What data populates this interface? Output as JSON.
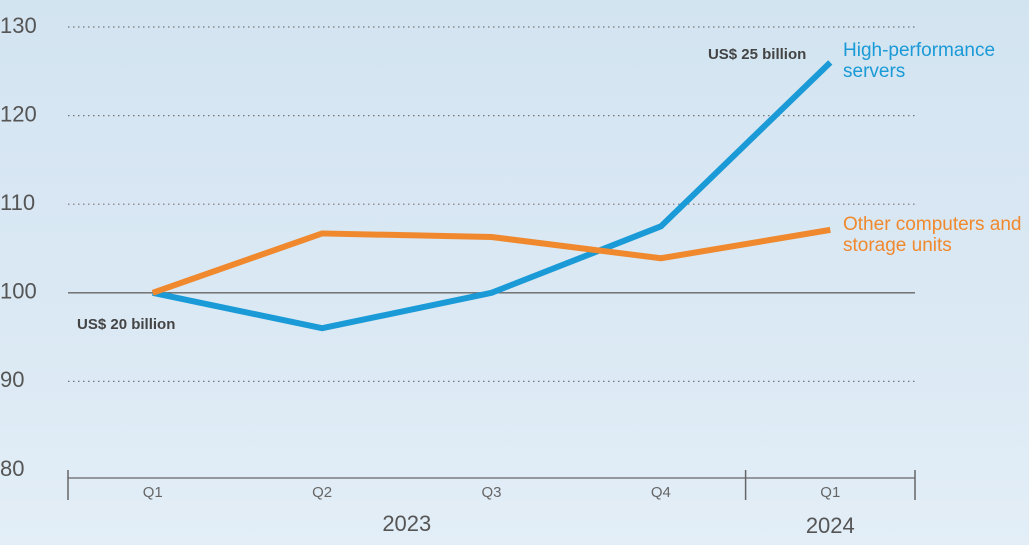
{
  "chart_data": {
    "type": "line",
    "categories": [
      "Q1",
      "Q2",
      "Q3",
      "Q4",
      "Q1"
    ],
    "x_groups": [
      {
        "label": "2023",
        "span": 4
      },
      {
        "label": "2024",
        "span": 1
      }
    ],
    "series": [
      {
        "name": "High-performance servers",
        "color": "#1a9ad6",
        "values": [
          100,
          96,
          100,
          107.5,
          126
        ]
      },
      {
        "name": "Other computers and storage units",
        "color": "#f0892e",
        "values": [
          100,
          106.7,
          106.3,
          103.9,
          107.1
        ]
      }
    ],
    "annotations": [
      "US$ 20 billion",
      "US$ 25 billion"
    ],
    "ylim": [
      80,
      131
    ],
    "yticks": [
      80,
      90,
      100,
      110,
      120,
      130
    ],
    "grid": true,
    "reference_line": 100
  }
}
